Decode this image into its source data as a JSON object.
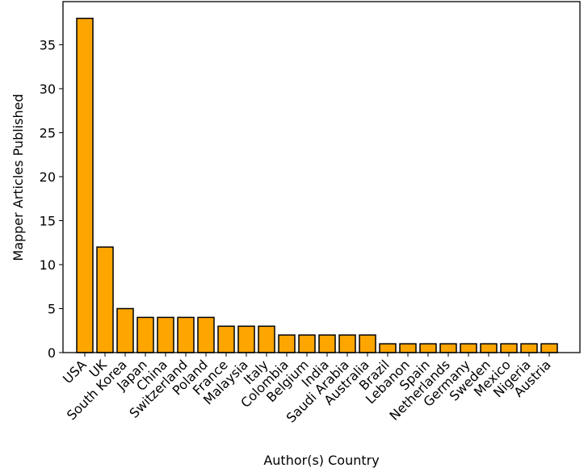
{
  "chart_data": {
    "type": "bar",
    "title": "",
    "xlabel": "Author(s) Country",
    "ylabel": "Mapper Articles Published",
    "categories": [
      "USA",
      "UK",
      "South Korea",
      "Japan",
      "China",
      "Switzerland",
      "Poland",
      "France",
      "Malaysia",
      "Italy",
      "Colombia",
      "Belgium",
      "India",
      "Saudi Arabia",
      "Australia",
      "Brazil",
      "Lebanon",
      "Spain",
      "Netherlands",
      "Germany",
      "Sweden",
      "Mexico",
      "Nigeria",
      "Austria"
    ],
    "values": [
      38,
      12,
      5,
      4,
      4,
      4,
      4,
      3,
      3,
      3,
      2,
      2,
      2,
      2,
      2,
      1,
      1,
      1,
      1,
      1,
      1,
      1,
      1,
      1
    ],
    "ylim": [
      0,
      39.9
    ],
    "yticks": [
      0,
      5,
      10,
      15,
      20,
      25,
      30,
      35
    ],
    "grid": false,
    "bar_color": "#FFA500",
    "edge_color": "#000000"
  }
}
